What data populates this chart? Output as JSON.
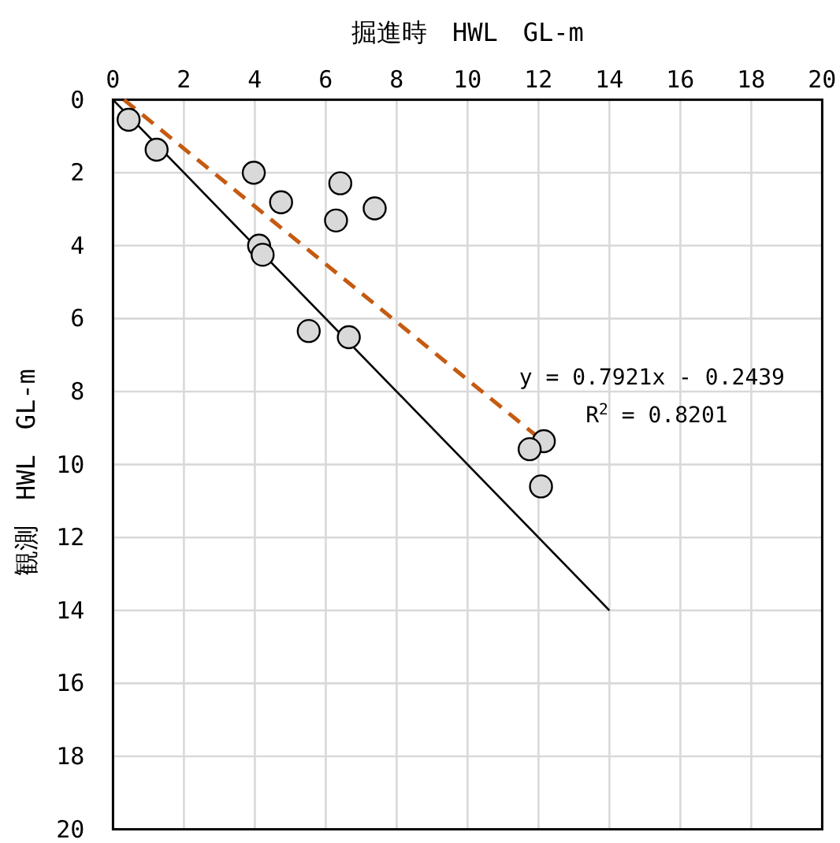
{
  "chart_data": {
    "type": "scatter",
    "xlabel": "掘進時　HWL　GL-m",
    "ylabel": "観測　HWL　GL-m",
    "xlim": [
      0,
      20
    ],
    "ylim": [
      20,
      0
    ],
    "xticks": [
      0,
      2,
      4,
      6,
      8,
      10,
      12,
      14,
      16,
      18,
      20
    ],
    "yticks": [
      0,
      2,
      4,
      6,
      8,
      10,
      12,
      14,
      16,
      18,
      20
    ],
    "grid": true,
    "series": [
      {
        "marker": "circle",
        "color": "#d9d9d9",
        "x": [
          0.44,
          1.23,
          3.97,
          6.41,
          4.74,
          7.38,
          6.29,
          4.12,
          4.22,
          5.52,
          6.65,
          12.15,
          11.75,
          12.07
        ],
        "values": [
          0.55,
          1.37,
          2.0,
          2.29,
          2.81,
          2.98,
          3.31,
          4.0,
          4.25,
          6.34,
          6.51,
          9.36,
          9.58,
          10.6
        ]
      },
      {
        "type": "line",
        "color": "#c55a11",
        "line_style": "dashed",
        "x": [
          0.31,
          12.1
        ],
        "values": [
          0,
          9.34
        ]
      },
      {
        "type": "line",
        "color": "#000000",
        "line_style": "solid",
        "x": [
          0,
          14
        ],
        "values": [
          0,
          14
        ]
      }
    ],
    "annotations": [
      "y = 0.7921x - 0.2439",
      "R$^{2}$ = 0.8201"
    ]
  }
}
